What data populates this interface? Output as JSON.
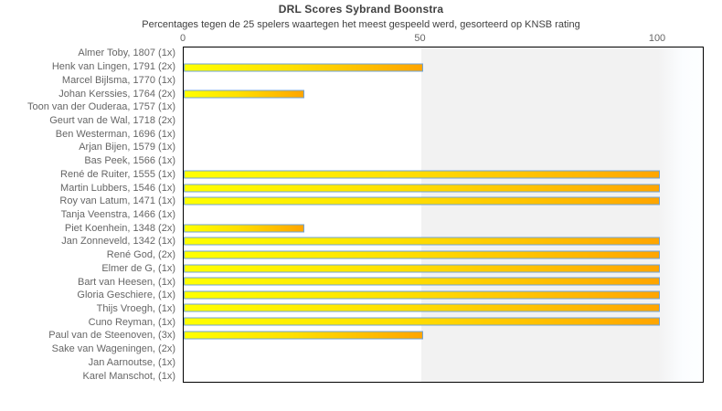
{
  "chart_data": {
    "type": "bar",
    "orientation": "horizontal",
    "title": "DRL Scores Sybrand Boonstra",
    "subtitle": "Percentages tegen de 25 spelers waartegen het meest gespeeld werd, gesorteerd op KNSB rating",
    "xlabel": "",
    "ylabel": "",
    "x_ticks": [
      0,
      50,
      100
    ],
    "xlim": [
      0,
      110
    ],
    "grid": false,
    "legend": "none",
    "categories": [
      "Almer Toby, 1807 (1x)",
      "Henk van Lingen, 1791 (2x)",
      "Marcel Bijlsma, 1770 (1x)",
      "Johan Kerssies, 1764 (2x)",
      "Toon van der Ouderaa, 1757 (1x)",
      "Geurt van de Wal, 1718 (2x)",
      "Ben Westerman, 1696 (1x)",
      "Arjan Bijen, 1579 (1x)",
      "Bas Peek, 1566 (1x)",
      "René de Ruiter, 1555 (1x)",
      "Martin Lubbers, 1546 (1x)",
      "Roy van Latum, 1471 (1x)",
      "Tanja Veenstra, 1466 (1x)",
      "Piet Koenhein, 1348 (2x)",
      "Jan Zonneveld, 1342 (1x)",
      "René God,  (2x)",
      "Elmer de G,  (1x)",
      "Bart van Heesen,  (1x)",
      "Gloria Geschiere,  (1x)",
      "Thijs Vroegh,  (1x)",
      "Cuno Reyman,  (1x)",
      "Paul van de Steenoven,  (3x)",
      "Sake van Wageningen,  (2x)",
      "Jan Aarnoutse,  (1x)",
      "Karel Manschot,  (1x)"
    ],
    "values": [
      0,
      50,
      0,
      25,
      0,
      0,
      0,
      0,
      0,
      100,
      100,
      100,
      0,
      25,
      100,
      100,
      100,
      100,
      100,
      100,
      100,
      50,
      0,
      0,
      0
    ],
    "colors": {
      "bar_gradient_start": "#ffff00",
      "bar_gradient_end": "#ffa500",
      "bar_border": "#6fa3d7",
      "band_50_100": "#f2f2f2",
      "plot_border": "#000000",
      "title_text": "#404040",
      "axis_text": "#666666",
      "label_text": "#666666",
      "page_background": "#ffffff"
    }
  }
}
